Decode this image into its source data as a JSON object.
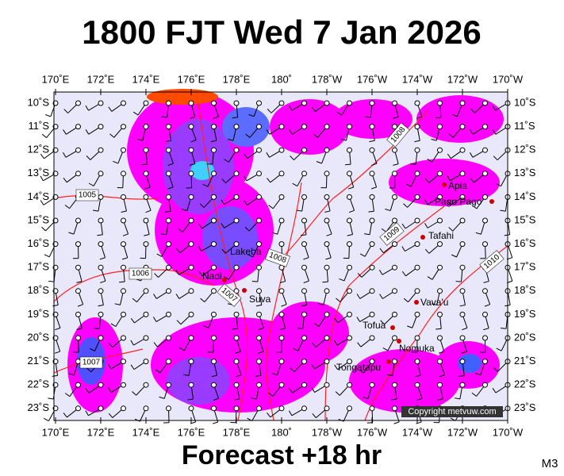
{
  "header": {
    "title": "1800 FJT Wed 7 Jan 2026"
  },
  "footer": {
    "forecast": "Forecast +18 hr",
    "model": "M3"
  },
  "axes": {
    "longitude_labels": [
      "170˚E",
      "172˚E",
      "174˚E",
      "176˚E",
      "178˚E",
      "180˚",
      "178˚W",
      "176˚W",
      "174˚W",
      "172˚W",
      "170˚W"
    ],
    "latitude_labels": [
      "10˚S",
      "11˚S",
      "12˚S",
      "13˚S",
      "14˚S",
      "15˚S",
      "16˚S",
      "17˚S",
      "18˚S",
      "19˚S",
      "20˚S",
      "21˚S",
      "22˚S",
      "23˚S"
    ]
  },
  "places": [
    "Apia",
    "Pago Pago",
    "Tafahi",
    "Vava'u",
    "Lakeba",
    "Nadi",
    "Suva",
    "Tofua",
    "Nomuka",
    "Tongatapu"
  ],
  "isobar_labels": [
    "1005",
    "1006",
    "1007",
    "1007",
    "1008",
    "1008",
    "1009",
    "1010"
  ],
  "copyright": "Copyright metvuw.com"
}
